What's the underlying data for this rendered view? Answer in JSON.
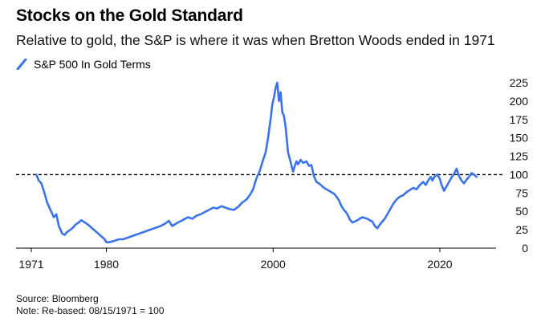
{
  "chart_data": {
    "type": "line",
    "title": "Stocks on the Gold Standard",
    "subtitle": "Relative to gold, the S&P is where it was when Bretton Woods ended in 1971",
    "legend": [
      {
        "name": "S&P 500 In Gold Terms",
        "color": "#3b73e8"
      }
    ],
    "xlabel": "",
    "ylabel": "",
    "x_ticks": [
      1971,
      1980,
      2000,
      2020
    ],
    "y_ticks": [
      0,
      25,
      50,
      75,
      100,
      125,
      150,
      175,
      200,
      225
    ],
    "xlim": [
      1971,
      2024.5
    ],
    "ylim": [
      0,
      230
    ],
    "reference_line": {
      "value": 100,
      "style": "dashed",
      "color": "#000000"
    },
    "series": [
      {
        "name": "S&P 500 In Gold Terms",
        "color": "#3b73e8",
        "x": [
          1971.6,
          1971.9,
          1972.2,
          1972.5,
          1972.9,
          1973.3,
          1973.7,
          1974.0,
          1974.3,
          1974.7,
          1975.0,
          1975.3,
          1975.7,
          1976.0,
          1976.3,
          1976.7,
          1977.0,
          1977.4,
          1977.8,
          1978.2,
          1978.6,
          1979.0,
          1979.4,
          1979.8,
          1980.0,
          1980.3,
          1980.7,
          1981.0,
          1981.5,
          1982.0,
          1982.5,
          1983.0,
          1983.5,
          1984.0,
          1984.5,
          1985.0,
          1985.5,
          1986.0,
          1986.5,
          1987.0,
          1987.5,
          1987.9,
          1988.3,
          1988.8,
          1989.3,
          1989.8,
          1990.3,
          1990.8,
          1991.3,
          1991.8,
          1992.3,
          1992.8,
          1993.3,
          1993.8,
          1994.3,
          1994.8,
          1995.3,
          1995.8,
          1996.3,
          1996.8,
          1997.2,
          1997.6,
          1998.0,
          1998.4,
          1998.8,
          1999.1,
          1999.4,
          1999.7,
          1999.9,
          2000.1,
          2000.3,
          2000.5,
          2000.7,
          2000.9,
          2001.1,
          2001.3,
          2001.5,
          2001.8,
          2002.1,
          2002.4,
          2002.6,
          2002.8,
          2003.0,
          2003.3,
          2003.6,
          2004.0,
          2004.3,
          2004.6,
          2004.9,
          2005.2,
          2005.5,
          2005.8,
          2006.1,
          2006.4,
          2006.7,
          2007.0,
          2007.3,
          2007.6,
          2007.9,
          2008.2,
          2008.5,
          2008.8,
          2009.0,
          2009.2,
          2009.5,
          2009.8,
          2010.1,
          2010.4,
          2010.7,
          2011.0,
          2011.3,
          2011.6,
          2011.9,
          2012.2,
          2012.5,
          2012.8,
          2013.1,
          2013.4,
          2013.7,
          2014.0,
          2014.4,
          2014.8,
          2015.2,
          2015.6,
          2016.0,
          2016.4,
          2016.8,
          2017.2,
          2017.6,
          2018.0,
          2018.3,
          2018.6,
          2018.9,
          2019.1,
          2019.4,
          2019.7,
          2020.0,
          2020.2,
          2020.5,
          2020.8,
          2021.1,
          2021.4,
          2021.7,
          2022.0,
          2022.3,
          2022.6,
          2022.9,
          2023.2,
          2023.5,
          2023.8,
          2024.1,
          2024.4
        ],
        "values": [
          100,
          92,
          88,
          78,
          62,
          52,
          42,
          46,
          30,
          20,
          18,
          22,
          25,
          28,
          32,
          35,
          38,
          35,
          32,
          28,
          24,
          20,
          16,
          12,
          8,
          8,
          9,
          10,
          12,
          12,
          14,
          16,
          18,
          20,
          22,
          24,
          26,
          28,
          30,
          33,
          37,
          30,
          33,
          36,
          39,
          42,
          40,
          44,
          46,
          49,
          52,
          55,
          54,
          57,
          55,
          53,
          52,
          56,
          62,
          66,
          72,
          80,
          95,
          105,
          120,
          130,
          150,
          175,
          195,
          205,
          218,
          225,
          200,
          212,
          185,
          180,
          165,
          130,
          117,
          104,
          112,
          118,
          114,
          120,
          116,
          118,
          112,
          113,
          98,
          90,
          88,
          85,
          82,
          80,
          78,
          76,
          74,
          70,
          65,
          57,
          52,
          48,
          44,
          39,
          35,
          36,
          38,
          40,
          42,
          41,
          40,
          38,
          36,
          30,
          27,
          32,
          36,
          40,
          46,
          52,
          60,
          66,
          70,
          72,
          76,
          79,
          82,
          80,
          86,
          90,
          86,
          92,
          97,
          92,
          98,
          100,
          94,
          86,
          78,
          84,
          90,
          96,
          101,
          108,
          98,
          92,
          88,
          93,
          97,
          102,
          100,
          97
        ]
      }
    ]
  },
  "footer": {
    "source": "Source: Bloomberg",
    "note": "Note: Re-based: 08/15/1971 = 100"
  }
}
